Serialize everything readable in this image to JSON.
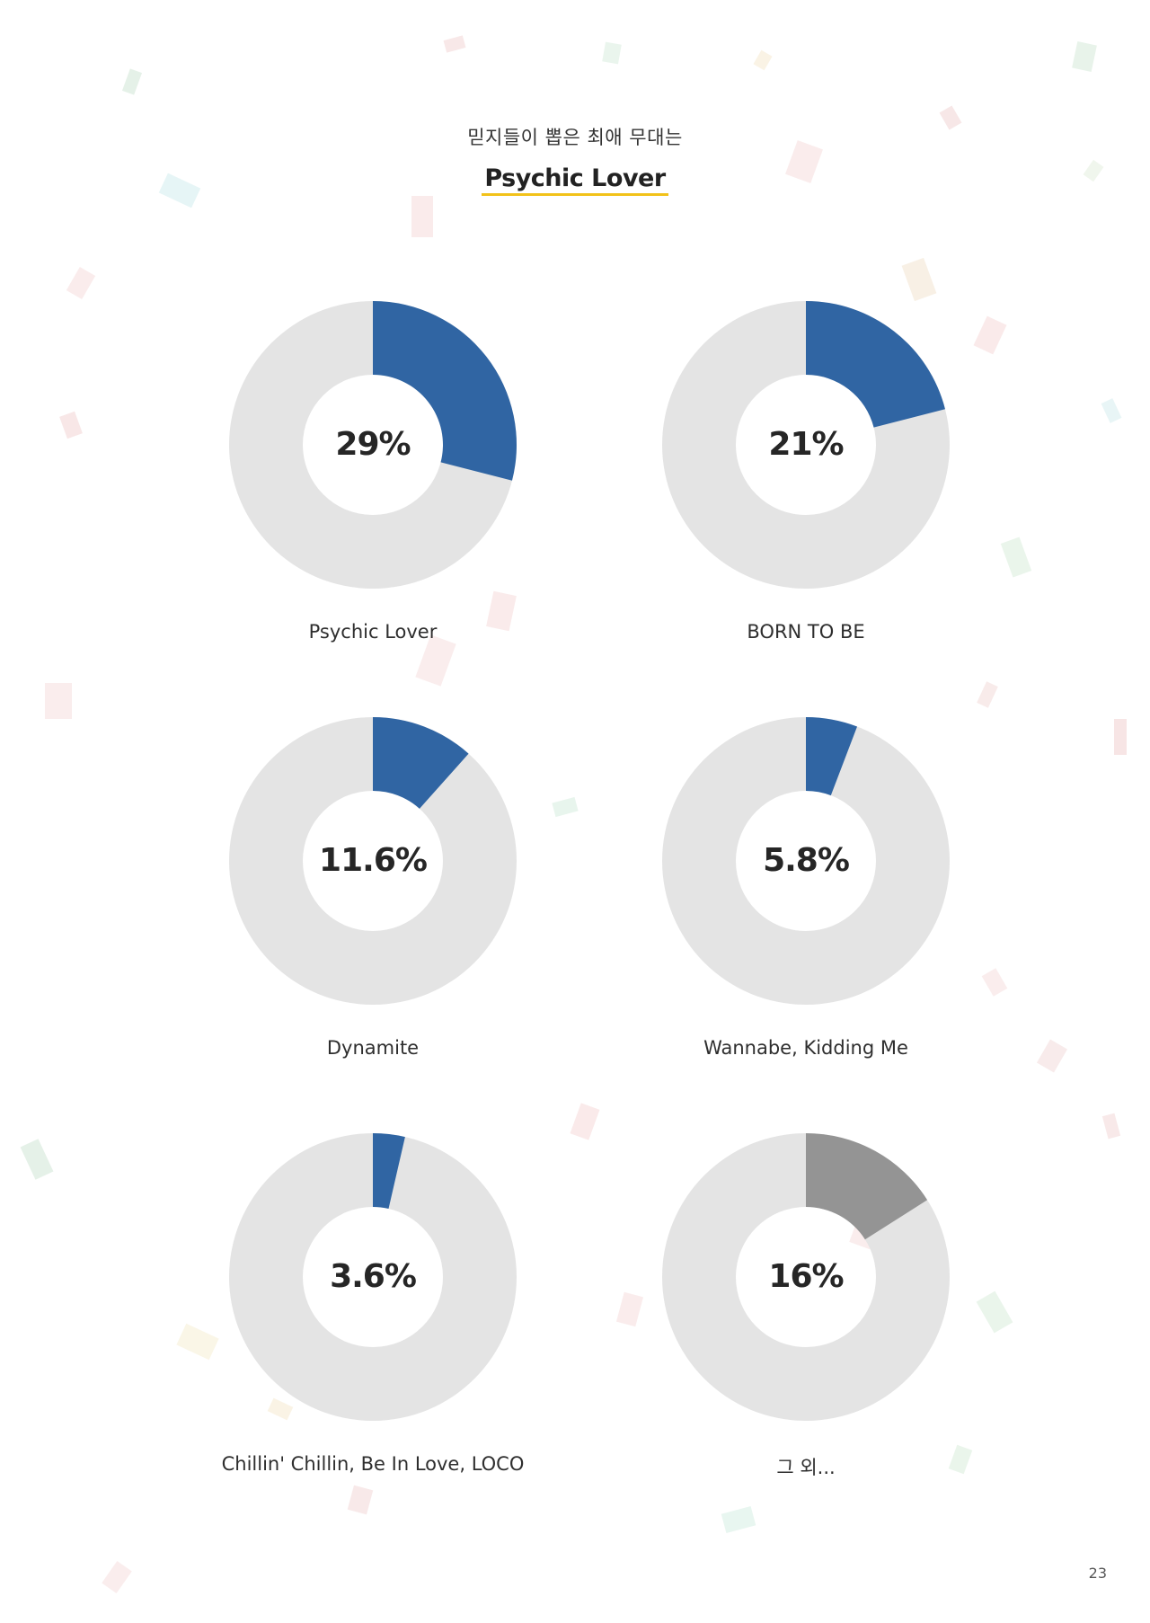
{
  "header": {
    "subtitle": "믿지들이 뽑은 최애 무대는",
    "title": "Psychic Lover"
  },
  "colors": {
    "accent_blue": "#3065a3",
    "other_gray": "#949494",
    "track_gray": "#e4e4e4",
    "title_underline": "#f2c21a"
  },
  "chart_data": [
    {
      "type": "pie",
      "style": "donut",
      "label": "Psychic Lover",
      "value": 29,
      "display": "29%"
    },
    {
      "type": "pie",
      "style": "donut",
      "label": "BORN TO BE",
      "value": 21,
      "display": "21%"
    },
    {
      "type": "pie",
      "style": "donut",
      "label": "Dynamite",
      "value": 11.6,
      "display": "11.6%"
    },
    {
      "type": "pie",
      "style": "donut",
      "label": "Wannabe, Kidding Me",
      "value": 5.8,
      "display": "5.8%"
    },
    {
      "type": "pie",
      "style": "donut",
      "label": "Chillin' Chillin, Be In Love, LOCO",
      "value": 3.6,
      "display": "3.6%"
    },
    {
      "type": "pie",
      "style": "donut",
      "label": "그 외...",
      "value": 16,
      "display": "16%"
    }
  ],
  "footer": {
    "page_number": "23"
  }
}
